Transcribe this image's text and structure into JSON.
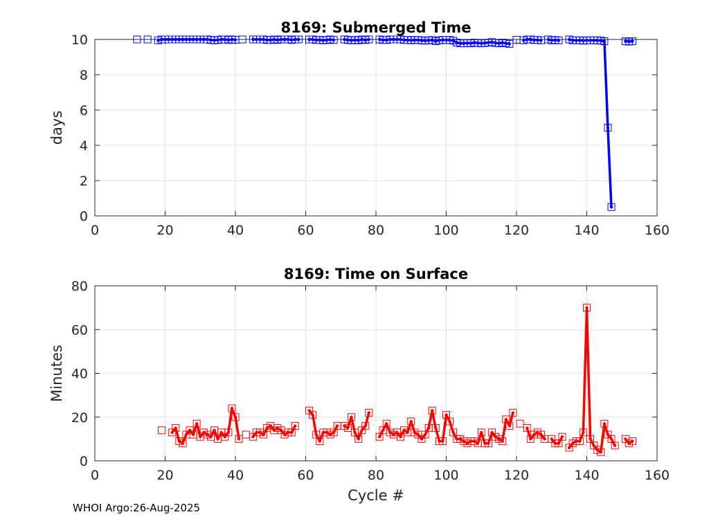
{
  "footer": "WHOI Argo:26-Aug-2025",
  "chart_data": [
    {
      "type": "line",
      "title": "8169: Submerged Time",
      "xlabel": "",
      "ylabel": "days",
      "xlim": [
        0,
        160
      ],
      "ylim": [
        0,
        10
      ],
      "xticks": [
        0,
        20,
        40,
        60,
        80,
        100,
        120,
        140,
        160
      ],
      "yticks": [
        0,
        2,
        4,
        6,
        8,
        10
      ],
      "grid": true,
      "color": "#0000ff",
      "series": [
        {
          "x": [
            12,
            15,
            18,
            19,
            20,
            21,
            22,
            23,
            24,
            25,
            26,
            27,
            28,
            29,
            30,
            31,
            32,
            33,
            34,
            35,
            36,
            37,
            38,
            39,
            40,
            42,
            45,
            46,
            47,
            48,
            49,
            50,
            51,
            52,
            53,
            54,
            55,
            56,
            57,
            58,
            61,
            62,
            63,
            64,
            65,
            66,
            67,
            68,
            71,
            72,
            73,
            74,
            75,
            76,
            77,
            78,
            81,
            82,
            83,
            84,
            85,
            86,
            87,
            88,
            89,
            90,
            91,
            92,
            93,
            94,
            95,
            96,
            97,
            98,
            99,
            100,
            101,
            102,
            103,
            104,
            105,
            106,
            107,
            108,
            109,
            110,
            111,
            112,
            113,
            114,
            115,
            116,
            117,
            118,
            120,
            122,
            123,
            124,
            125,
            126,
            127,
            129,
            130,
            131,
            132,
            135,
            136,
            137,
            138,
            139,
            140,
            141,
            142,
            143,
            144,
            145,
            146,
            147,
            151,
            152,
            153
          ],
          "y": [
            10,
            10,
            9.95,
            10,
            10,
            10,
            10,
            10,
            10,
            10,
            10,
            10,
            10,
            10,
            10,
            10,
            10,
            9.97,
            9.95,
            9.97,
            10,
            10,
            9.97,
            10,
            9.98,
            10,
            10,
            10,
            10,
            10,
            9.97,
            9.97,
            10,
            9.97,
            10,
            10,
            10,
            9.97,
            10,
            10,
            10,
            10,
            9.97,
            9.97,
            9.95,
            9.97,
            10,
            9.97,
            10,
            9.97,
            9.95,
            9.97,
            9.95,
            10,
            9.97,
            10,
            10,
            9.97,
            9.97,
            10,
            10,
            10,
            10,
            9.97,
            9.97,
            9.95,
            9.97,
            9.97,
            9.95,
            9.93,
            9.95,
            9.97,
            9.9,
            9.95,
            9.97,
            9.97,
            9.97,
            9.93,
            9.82,
            9.78,
            9.78,
            9.8,
            9.78,
            9.82,
            9.8,
            9.78,
            9.8,
            9.82,
            9.85,
            9.8,
            9.78,
            9.82,
            9.78,
            9.75,
            9.98,
            9.95,
            10,
            10,
            9.97,
            9.97,
            9.95,
            10,
            9.95,
            9.97,
            9.95,
            10,
            9.95,
            9.95,
            9.95,
            9.93,
            9.95,
            9.95,
            9.95,
            9.95,
            9.93,
            9.9,
            5.0,
            0.5,
            9.9,
            9.88,
            9.9
          ]
        }
      ]
    },
    {
      "type": "line",
      "title": "8169: Time on Surface",
      "xlabel": "Cycle #",
      "ylabel": "Minutes",
      "xlim": [
        0,
        160
      ],
      "ylim": [
        0,
        80
      ],
      "xticks": [
        0,
        20,
        40,
        60,
        80,
        100,
        120,
        140,
        160
      ],
      "yticks": [
        0,
        20,
        40,
        60,
        80
      ],
      "grid": true,
      "color": "#ff0000",
      "series": [
        {
          "x": [
            19,
            22,
            23,
            24,
            25,
            26,
            27,
            28,
            29,
            30,
            31,
            32,
            33,
            34,
            35,
            36,
            37,
            38,
            39,
            40,
            41,
            43,
            45,
            46,
            47,
            48,
            49,
            50,
            51,
            52,
            53,
            54,
            55,
            56,
            57,
            61,
            62,
            63,
            64,
            65,
            66,
            67,
            68,
            69,
            71,
            72,
            73,
            74,
            75,
            76,
            77,
            78,
            81,
            82,
            83,
            84,
            85,
            86,
            87,
            88,
            89,
            90,
            91,
            92,
            93,
            94,
            95,
            96,
            97,
            98,
            99,
            100,
            101,
            102,
            103,
            104,
            105,
            106,
            107,
            108,
            109,
            110,
            111,
            112,
            113,
            114,
            115,
            116,
            117,
            118,
            119,
            121,
            123,
            124,
            125,
            126,
            127,
            128,
            130,
            131,
            132,
            133,
            135,
            136,
            137,
            138,
            139,
            140,
            141,
            142,
            143,
            144,
            145,
            146,
            147,
            148,
            151,
            152,
            153
          ],
          "y": [
            14,
            13,
            15,
            9,
            8,
            12,
            14,
            12,
            17,
            11,
            13,
            12,
            11,
            14,
            10,
            13,
            11,
            13,
            24,
            20,
            10,
            12,
            11,
            13,
            13,
            12,
            15,
            16,
            14,
            15,
            14,
            12,
            13,
            13,
            16,
            23,
            21,
            12,
            9,
            13,
            13,
            12,
            13,
            16,
            16,
            15,
            20,
            13,
            10,
            14,
            16,
            22,
            11,
            14,
            17,
            13,
            12,
            13,
            11,
            14,
            13,
            18,
            13,
            12,
            10,
            12,
            15,
            23,
            15,
            9,
            9,
            21,
            18,
            13,
            10,
            10,
            9,
            8,
            9,
            9,
            8,
            13,
            8,
            8,
            13,
            11,
            10,
            9,
            19,
            16,
            22,
            17,
            15,
            10,
            12,
            13,
            12,
            10,
            10,
            8,
            8,
            11,
            6,
            8,
            9,
            9,
            13,
            70,
            10,
            7,
            5,
            4,
            17,
            12,
            10,
            7,
            10,
            8,
            9
          ]
        }
      ]
    }
  ]
}
